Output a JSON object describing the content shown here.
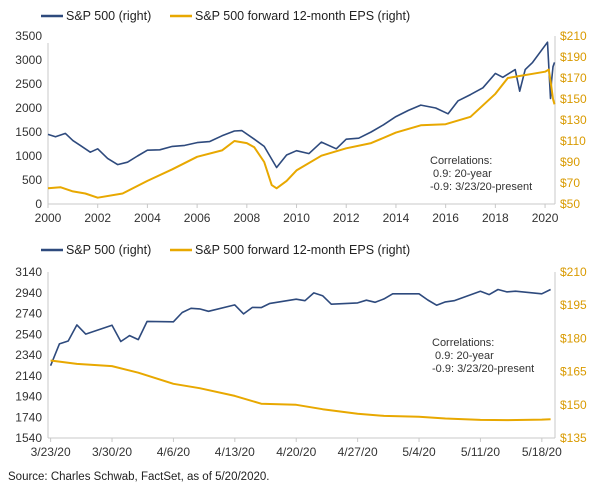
{
  "colors": {
    "sp500": "#2e4a7d",
    "eps": "#e8a800",
    "right_axis": "#d99a00"
  },
  "source": "Source: Charles Schwab, FactSet, as of 5/20/2020.",
  "chart_data": [
    {
      "type": "line",
      "legend": [
        "S&P 500 (right)",
        "S&P 500 forward 12-month EPS (right)"
      ],
      "annotation": {
        "title": "Correlations:",
        "lines": [
          " 0.9: 20-year",
          "-0.9: 3/23/20-present"
        ]
      },
      "x_ticks": [
        "2000",
        "2002",
        "2004",
        "2006",
        "2008",
        "2010",
        "2012",
        "2014",
        "2016",
        "2018",
        "2020"
      ],
      "xlim": [
        2000,
        2020.4
      ],
      "left_axis": {
        "ticks": [
          "0",
          "500",
          "1000",
          "1500",
          "2000",
          "2500",
          "3000",
          "3500"
        ],
        "lim": [
          0,
          3500
        ]
      },
      "right_axis": {
        "ticks": [
          "$50",
          "$70",
          "$90",
          "$110",
          "$130",
          "$150",
          "$170",
          "$190",
          "$210"
        ],
        "lim": [
          50,
          210
        ]
      },
      "series": [
        {
          "name": "S&P 500 (right)",
          "axis": "left",
          "color": "#2e4a7d",
          "x": [
            2000,
            2000.3,
            2000.7,
            2001,
            2001.3,
            2001.7,
            2002,
            2002.4,
            2002.8,
            2003.2,
            2003.6,
            2004,
            2004.5,
            2005,
            2005.5,
            2006,
            2006.5,
            2007,
            2007.5,
            2007.8,
            2008.3,
            2008.7,
            2009.2,
            2009.6,
            2010,
            2010.5,
            2011,
            2011.6,
            2012,
            2012.5,
            2013,
            2013.5,
            2014,
            2014.5,
            2015,
            2015.6,
            2016.1,
            2016.5,
            2017,
            2017.5,
            2018,
            2018.3,
            2018.8,
            2018.98,
            2019.2,
            2019.5,
            2020.1,
            2020.22,
            2020.26,
            2020.32,
            2020.38
          ],
          "y": [
            1450,
            1400,
            1470,
            1320,
            1220,
            1080,
            1150,
            950,
            820,
            870,
            1000,
            1120,
            1130,
            1200,
            1220,
            1280,
            1300,
            1420,
            1520,
            1530,
            1350,
            1200,
            760,
            1020,
            1110,
            1050,
            1290,
            1150,
            1350,
            1370,
            1500,
            1650,
            1820,
            1950,
            2060,
            2000,
            1880,
            2150,
            2280,
            2420,
            2720,
            2640,
            2800,
            2350,
            2800,
            2950,
            3370,
            2200,
            2550,
            2860,
            2950
          ]
        },
        {
          "name": "S&P 500 forward 12-month EPS (right)",
          "axis": "right",
          "color": "#e8a800",
          "x": [
            2000,
            2000.5,
            2001,
            2001.5,
            2002,
            2003,
            2004,
            2005,
            2006,
            2007,
            2007.5,
            2008,
            2008.3,
            2008.7,
            2009,
            2009.2,
            2009.6,
            2010,
            2011,
            2012,
            2013,
            2014,
            2015,
            2016,
            2017,
            2018,
            2018.5,
            2019,
            2019.5,
            2020,
            2020.15,
            2020.25,
            2020.32,
            2020.38
          ],
          "y": [
            65,
            66,
            62,
            60,
            56,
            60,
            72,
            83,
            95,
            101,
            110,
            108,
            104,
            90,
            68,
            65,
            72,
            82,
            96,
            103,
            108,
            118,
            125,
            126,
            133,
            155,
            170,
            172,
            174,
            176,
            178,
            162,
            150,
            145
          ]
        }
      ]
    },
    {
      "type": "line",
      "legend": [
        "S&P 500 (right)",
        "S&P 500 forward 12-month EPS (right)"
      ],
      "annotation": {
        "title": "Correlations:",
        "lines": [
          " 0.9: 20-year",
          "-0.9: 3/23/20-present"
        ]
      },
      "x_ticks": [
        "3/23/20",
        "3/30/20",
        "4/6/20",
        "4/13/20",
        "4/20/20",
        "4/27/20",
        "5/4/20",
        "5/11/20",
        "5/18/20"
      ],
      "xlim": [
        -0.3,
        57.5
      ],
      "left_axis": {
        "ticks": [
          "1540",
          "1740",
          "1940",
          "2140",
          "2340",
          "2540",
          "2740",
          "2940",
          "3140"
        ],
        "lim": [
          1540,
          3140
        ]
      },
      "right_axis": {
        "ticks": [
          "$135",
          "$150",
          "$165",
          "$180",
          "$195",
          "$210"
        ],
        "lim": [
          135,
          210
        ]
      },
      "series": [
        {
          "name": "S&P 500 (right)",
          "axis": "left",
          "color": "#2e4a7d",
          "x": [
            0,
            1,
            2,
            3,
            4,
            7,
            8,
            9,
            10,
            11,
            14,
            15,
            16,
            17,
            18,
            21,
            22,
            23,
            24,
            25,
            28,
            29,
            30,
            31,
            32,
            35,
            36,
            37,
            38,
            39,
            42,
            43,
            44,
            45,
            46,
            49,
            50,
            51,
            52,
            53,
            56,
            57
          ],
          "y": [
            2237,
            2447,
            2475,
            2630,
            2541,
            2627,
            2470,
            2527,
            2488,
            2664,
            2660,
            2750,
            2790,
            2784,
            2761,
            2823,
            2736,
            2799,
            2797,
            2837,
            2878,
            2863,
            2939,
            2912,
            2830,
            2842,
            2868,
            2848,
            2881,
            2930,
            2930,
            2870,
            2820,
            2852,
            2863,
            2954,
            2922,
            2971,
            2948,
            2955,
            2930,
            2971
          ]
        },
        {
          "name": "S&P 500 forward 12-month EPS (right)",
          "axis": "right",
          "color": "#e8a800",
          "x": [
            0,
            3,
            7,
            10,
            14,
            17,
            21,
            24,
            28,
            31,
            35,
            38,
            42,
            45,
            49,
            52,
            56,
            57
          ],
          "y": [
            170,
            168.5,
            167.5,
            164.5,
            159.5,
            157.5,
            154,
            150.5,
            150,
            148,
            146,
            145,
            144.6,
            143.8,
            143.2,
            143.1,
            143.3,
            143.5
          ]
        }
      ]
    }
  ]
}
